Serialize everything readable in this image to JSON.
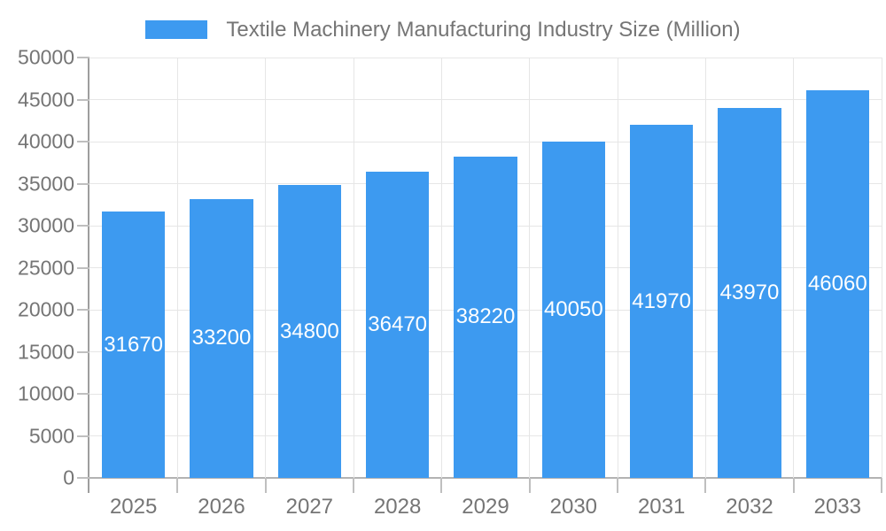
{
  "legend": {
    "label": "Textile Machinery Manufacturing Industry Size (Million)"
  },
  "chart_data": {
    "type": "bar",
    "title": "Textile Machinery Manufacturing Industry Size (Million)",
    "categories": [
      "2025",
      "2026",
      "2027",
      "2028",
      "2029",
      "2030",
      "2031",
      "2032",
      "2033"
    ],
    "series": [
      {
        "name": "Textile Machinery Manufacturing Industry Size (Million)",
        "values": [
          31670,
          33200,
          34800,
          36470,
          38220,
          40050,
          41970,
          43970,
          46060
        ]
      }
    ],
    "xlabel": "",
    "ylabel": "",
    "ylim": [
      0,
      50000
    ],
    "ytick_step": 5000,
    "yticks": [
      0,
      5000,
      10000,
      15000,
      20000,
      25000,
      30000,
      35000,
      40000,
      45000,
      50000
    ],
    "grid": true,
    "legend_position": "top",
    "bar_labels_shown": true,
    "bar_label_position": "middle"
  },
  "colors": {
    "bar": "#3D9AF0",
    "grid": "#E6E6E6",
    "axis_line": "#9E9E9E",
    "baseline": "#B3B3B3",
    "tick": "#BFBFBF",
    "text": "#757575",
    "bar_label": "#FFFFFF",
    "background": "#FFFFFF"
  }
}
